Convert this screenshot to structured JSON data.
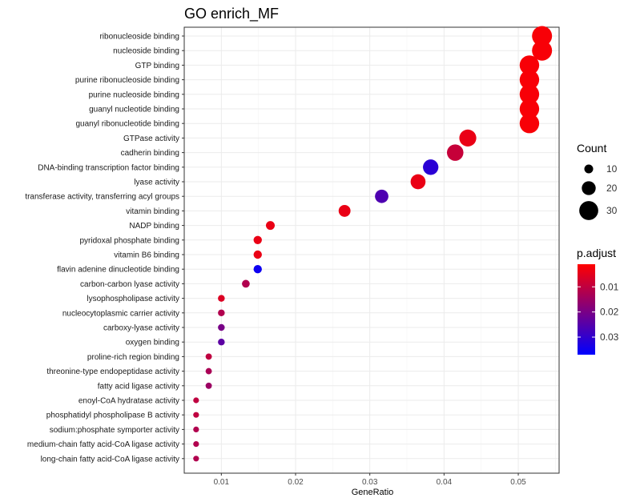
{
  "chart_data": {
    "type": "scatter",
    "title": "GO enrich_MF",
    "xlabel": "GeneRatio",
    "ylabel": "",
    "xlim": [
      0.005,
      0.0555
    ],
    "x_ticks": [
      "0.01",
      "0.02",
      "0.03",
      "0.04",
      "0.05"
    ],
    "x_tick_values": [
      0.01,
      0.02,
      0.03,
      0.04,
      0.05
    ],
    "grid": true,
    "points": [
      {
        "term": "ribonucleoside binding",
        "gene_ratio": 0.0532,
        "count": 32,
        "p_adjust": 0.002
      },
      {
        "term": "nucleoside binding",
        "gene_ratio": 0.0532,
        "count": 32,
        "p_adjust": 0.002
      },
      {
        "term": "GTP binding",
        "gene_ratio": 0.0515,
        "count": 31,
        "p_adjust": 0.002
      },
      {
        "term": "purine ribonucleoside binding",
        "gene_ratio": 0.0515,
        "count": 31,
        "p_adjust": 0.002
      },
      {
        "term": "purine nucleoside binding",
        "gene_ratio": 0.0515,
        "count": 31,
        "p_adjust": 0.002
      },
      {
        "term": "guanyl nucleotide binding",
        "gene_ratio": 0.0515,
        "count": 31,
        "p_adjust": 0.002
      },
      {
        "term": "guanyl ribonucleotide binding",
        "gene_ratio": 0.0515,
        "count": 31,
        "p_adjust": 0.002
      },
      {
        "term": "GTPase activity",
        "gene_ratio": 0.0432,
        "count": 26,
        "p_adjust": 0.004
      },
      {
        "term": "cadherin binding",
        "gene_ratio": 0.0415,
        "count": 25,
        "p_adjust": 0.009
      },
      {
        "term": "DNA-binding transcription factor binding",
        "gene_ratio": 0.0382,
        "count": 23,
        "p_adjust": 0.031
      },
      {
        "term": "lyase activity",
        "gene_ratio": 0.0365,
        "count": 22,
        "p_adjust": 0.004
      },
      {
        "term": "transferase activity, transferring acyl groups",
        "gene_ratio": 0.0316,
        "count": 19,
        "p_adjust": 0.026
      },
      {
        "term": "vitamin binding",
        "gene_ratio": 0.0266,
        "count": 16,
        "p_adjust": 0.004
      },
      {
        "term": "NADP binding",
        "gene_ratio": 0.0166,
        "count": 10,
        "p_adjust": 0.004
      },
      {
        "term": "pyridoxal phosphate binding",
        "gene_ratio": 0.0149,
        "count": 9,
        "p_adjust": 0.004
      },
      {
        "term": "vitamin B6 binding",
        "gene_ratio": 0.0149,
        "count": 9,
        "p_adjust": 0.004
      },
      {
        "term": "flavin adenine dinucleotide binding",
        "gene_ratio": 0.0149,
        "count": 9,
        "p_adjust": 0.035
      },
      {
        "term": "carbon-carbon lyase activity",
        "gene_ratio": 0.0133,
        "count": 8,
        "p_adjust": 0.012
      },
      {
        "term": "lysophospholipase activity",
        "gene_ratio": 0.01,
        "count": 6,
        "p_adjust": 0.006
      },
      {
        "term": "nucleocytoplasmic carrier activity",
        "gene_ratio": 0.01,
        "count": 6,
        "p_adjust": 0.012
      },
      {
        "term": "carboxy-lyase activity",
        "gene_ratio": 0.01,
        "count": 6,
        "p_adjust": 0.02
      },
      {
        "term": "oxygen binding",
        "gene_ratio": 0.01,
        "count": 6,
        "p_adjust": 0.024
      },
      {
        "term": "proline-rich region binding",
        "gene_ratio": 0.0083,
        "count": 5,
        "p_adjust": 0.01
      },
      {
        "term": "threonine-type endopeptidase activity",
        "gene_ratio": 0.0083,
        "count": 5,
        "p_adjust": 0.013
      },
      {
        "term": "fatty acid ligase activity",
        "gene_ratio": 0.0083,
        "count": 5,
        "p_adjust": 0.015
      },
      {
        "term": "enoyl-CoA hydratase activity",
        "gene_ratio": 0.0066,
        "count": 4,
        "p_adjust": 0.01
      },
      {
        "term": "phosphatidyl phospholipase B activity",
        "gene_ratio": 0.0066,
        "count": 4,
        "p_adjust": 0.01
      },
      {
        "term": "sodium:phosphate symporter activity",
        "gene_ratio": 0.0066,
        "count": 4,
        "p_adjust": 0.012
      },
      {
        "term": "medium-chain fatty acid-CoA ligase activity",
        "gene_ratio": 0.0066,
        "count": 4,
        "p_adjust": 0.012
      },
      {
        "term": "long-chain fatty acid-CoA ligase activity",
        "gene_ratio": 0.0066,
        "count": 4,
        "p_adjust": 0.012
      }
    ],
    "size_legend": {
      "title": "Count",
      "entries": [
        {
          "label": "10",
          "value": 10
        },
        {
          "label": "20",
          "value": 20
        },
        {
          "label": "30",
          "value": 30
        }
      ]
    },
    "color_legend": {
      "title": "p.adjust",
      "range": [
        0.001,
        0.037
      ],
      "low_color": "#ff0000",
      "high_color": "#0000ff",
      "ticks": [
        {
          "label": "0.01",
          "value": 0.01
        },
        {
          "label": "0.02",
          "value": 0.02
        },
        {
          "label": "0.03",
          "value": 0.03
        }
      ]
    }
  }
}
